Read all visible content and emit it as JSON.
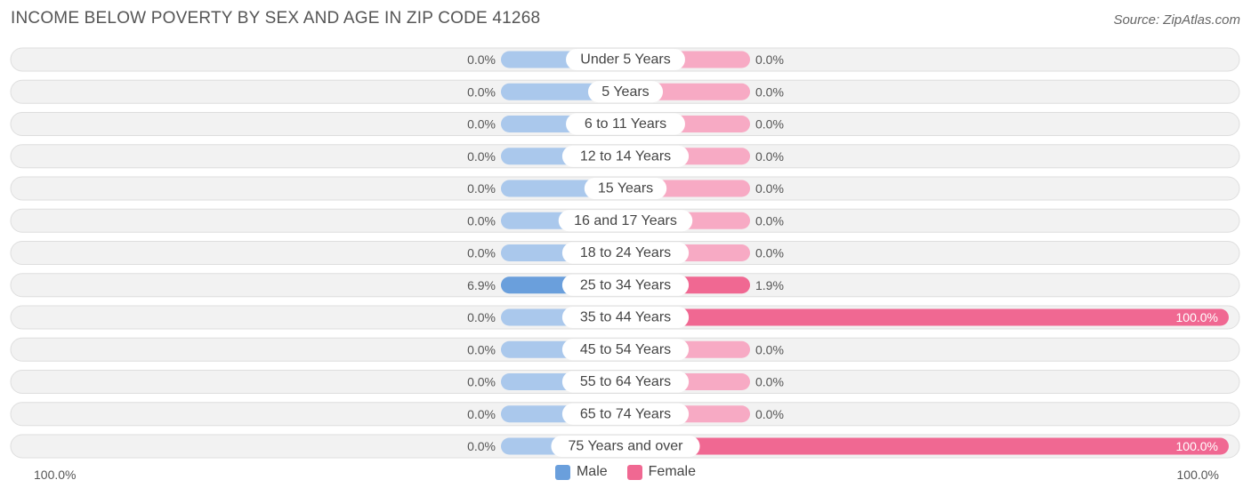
{
  "title": "INCOME BELOW POVERTY BY SEX AND AGE IN ZIP CODE 41268",
  "source": "Source: ZipAtlas.com",
  "colors": {
    "male": "#aac8ec",
    "male_strong": "#6a9fdc",
    "female": "#f7aac4",
    "female_strong": "#f06892",
    "row_bg": "#f2f2f2",
    "row_border": "#dedede"
  },
  "chart_data": {
    "type": "bar",
    "orientation": "horizontal-diverging",
    "categories": [
      "Under 5 Years",
      "5 Years",
      "6 to 11 Years",
      "12 to 14 Years",
      "15 Years",
      "16 and 17 Years",
      "18 to 24 Years",
      "25 to 34 Years",
      "35 to 44 Years",
      "45 to 54 Years",
      "55 to 64 Years",
      "65 to 74 Years",
      "75 Years and over"
    ],
    "series": [
      {
        "name": "Male",
        "values": [
          0.0,
          0.0,
          0.0,
          0.0,
          0.0,
          0.0,
          0.0,
          6.9,
          0.0,
          0.0,
          0.0,
          0.0,
          0.0
        ],
        "labels": [
          "0.0%",
          "0.0%",
          "0.0%",
          "0.0%",
          "0.0%",
          "0.0%",
          "0.0%",
          "6.9%",
          "0.0%",
          "0.0%",
          "0.0%",
          "0.0%",
          "0.0%"
        ]
      },
      {
        "name": "Female",
        "values": [
          0.0,
          0.0,
          0.0,
          0.0,
          0.0,
          0.0,
          0.0,
          1.9,
          100.0,
          0.0,
          0.0,
          0.0,
          100.0
        ],
        "labels": [
          "0.0%",
          "0.0%",
          "0.0%",
          "0.0%",
          "0.0%",
          "0.0%",
          "0.0%",
          "1.9%",
          "100.0%",
          "0.0%",
          "0.0%",
          "0.0%",
          "100.0%"
        ]
      }
    ],
    "xlim": [
      -100,
      100
    ],
    "axis_labels": {
      "left": "100.0%",
      "right": "100.0%"
    },
    "legend_position": "bottom-center"
  }
}
